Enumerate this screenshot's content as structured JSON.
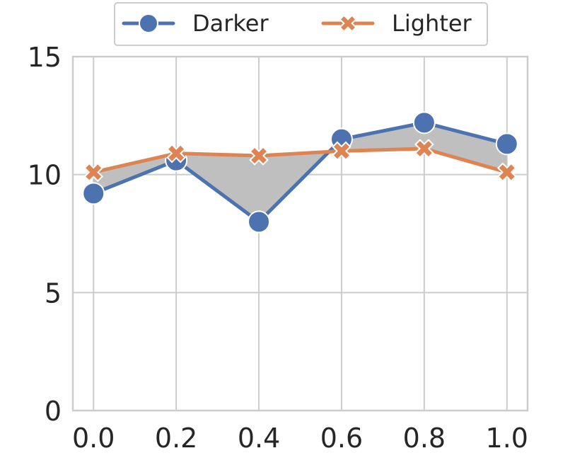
{
  "chart_data": {
    "type": "line",
    "x": [
      0.0,
      0.2,
      0.4,
      0.6,
      0.8,
      1.0
    ],
    "x_tick_labels": [
      "0.0",
      "0.2",
      "0.4",
      "0.6",
      "0.8",
      "1.0"
    ],
    "y_tick_labels": [
      "0",
      "5",
      "10",
      "15"
    ],
    "xlim": [
      -0.05,
      1.05
    ],
    "ylim": [
      0,
      15
    ],
    "grid": true,
    "legend_position": "top-center",
    "fill_between_series": true,
    "fill_color": "#bfbfbf",
    "series": [
      {
        "name": "Darker",
        "values": [
          9.2,
          10.6,
          8.0,
          11.5,
          12.2,
          11.3
        ],
        "color": "#4c72b0",
        "marker": "circle"
      },
      {
        "name": "Lighter",
        "values": [
          10.1,
          10.9,
          10.8,
          11.0,
          11.1,
          10.1
        ],
        "color": "#dd8452",
        "marker": "x"
      }
    ]
  }
}
